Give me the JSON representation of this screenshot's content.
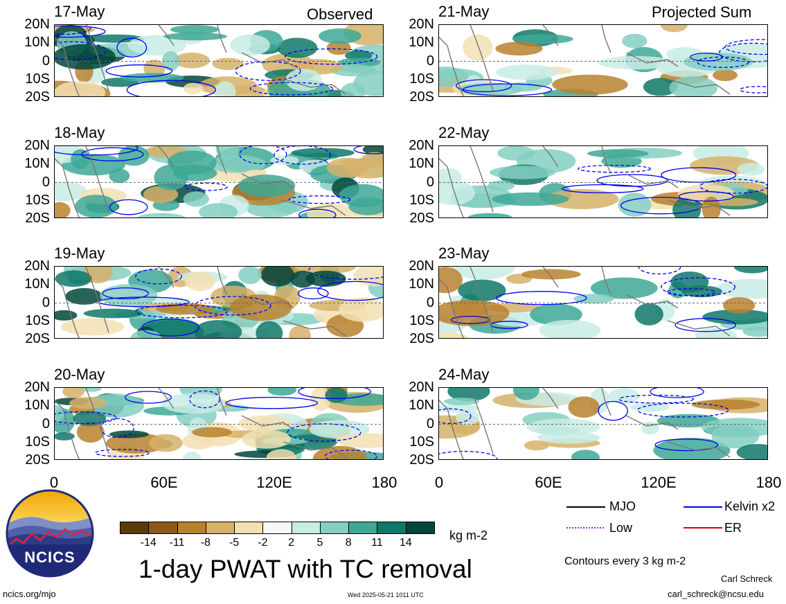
{
  "headers": {
    "left": "Observed",
    "right": "Projected Sum"
  },
  "panels": [
    {
      "col": 0,
      "row": 0,
      "date": "17-May"
    },
    {
      "col": 0,
      "row": 1,
      "date": "18-May"
    },
    {
      "col": 0,
      "row": 2,
      "date": "19-May"
    },
    {
      "col": 0,
      "row": 3,
      "date": "20-May"
    },
    {
      "col": 1,
      "row": 0,
      "date": "21-May"
    },
    {
      "col": 1,
      "row": 1,
      "date": "22-May"
    },
    {
      "col": 1,
      "row": 2,
      "date": "23-May"
    },
    {
      "col": 1,
      "row": 3,
      "date": "24-May"
    }
  ],
  "y_tick_labels": [
    "20N",
    "10N",
    "0",
    "10S",
    "20S"
  ],
  "x_tick_labels": [
    "0",
    "60E",
    "120E",
    "180"
  ],
  "chart_data": {
    "type": "heatmap",
    "title": "1-day PWAT with TC removal",
    "units": "kg m-2",
    "x_range": [
      0,
      180
    ],
    "y_range": [
      -20,
      20
    ],
    "colorbar": {
      "tick_labels": [
        "-14",
        "-11",
        "-8",
        "-5",
        "-2",
        "2",
        "5",
        "8",
        "11",
        "14"
      ],
      "colors": [
        "#5c3a0a",
        "#8b5a1a",
        "#b8812e",
        "#d6b26a",
        "#f2e0b3",
        "#f7f7f7",
        "#c9ece5",
        "#84cfc2",
        "#3ea897",
        "#0f7868",
        "#02463c"
      ]
    },
    "contour_legend": [
      {
        "name": "MJO",
        "color": "#000000",
        "style": "solid"
      },
      {
        "name": "Kelvin x2",
        "color": "#0000ee",
        "style": "solid"
      },
      {
        "name": "Low",
        "color": "#a020f0",
        "style": "dotted"
      },
      {
        "name": "ER",
        "color": "#e00000",
        "style": "solid"
      }
    ],
    "contour_note": "Contours every 3 kg m-2"
  },
  "footer": {
    "logo_text": "NCICS",
    "url": "ncics.org/mjo",
    "timestamp": "Wed 2025-05-21 1011 UTC",
    "author": "Carl Schreck",
    "email": "carl_schreck@ncsu.edu"
  }
}
